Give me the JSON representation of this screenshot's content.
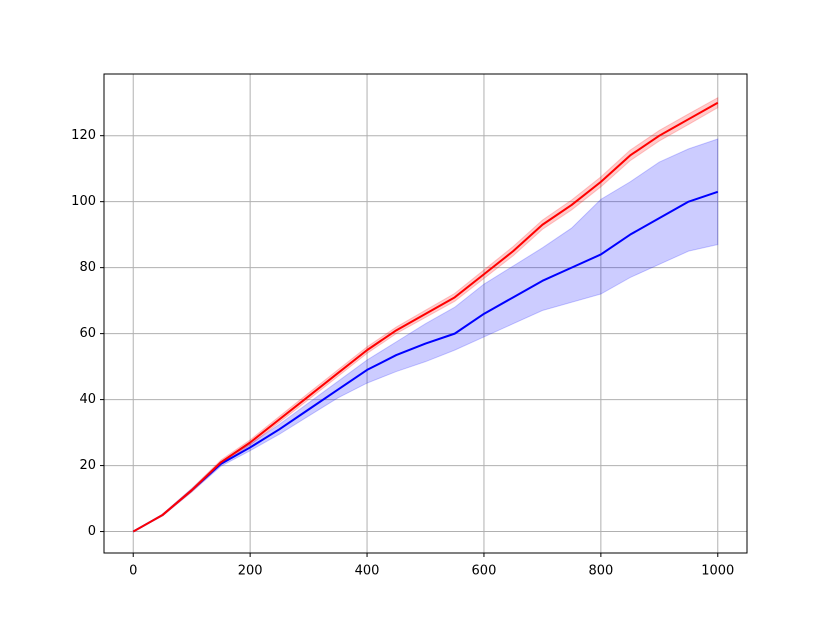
{
  "chart_data": {
    "type": "line_band",
    "x": [
      0,
      50,
      100,
      150,
      200,
      250,
      300,
      350,
      400,
      450,
      500,
      550,
      600,
      650,
      700,
      750,
      800,
      850,
      900,
      950,
      1000
    ],
    "series": [
      {
        "color": "#0000ff",
        "values": [
          0,
          5,
          12.5,
          20.5,
          25.5,
          31,
          37,
          43,
          49,
          53.5,
          57,
          60,
          66,
          71,
          76,
          80,
          84,
          90,
          95,
          100,
          103
        ],
        "lower": [
          0,
          4.8,
          12,
          19.8,
          24.5,
          29.5,
          35,
          40.5,
          45,
          48.5,
          51.5,
          55,
          59,
          63,
          67,
          69.5,
          72,
          77,
          81,
          85,
          87
        ],
        "upper": [
          0,
          5.2,
          13,
          21.2,
          26.5,
          32.5,
          39,
          45.5,
          52,
          57.5,
          63,
          68,
          75,
          80.5,
          86,
          92,
          100.7,
          106,
          112,
          116,
          119
        ]
      },
      {
        "color": "#ff0000",
        "values": [
          0,
          5,
          12.5,
          21,
          27,
          34,
          41,
          48,
          55,
          61,
          66,
          71,
          78,
          85,
          93,
          99,
          106,
          114,
          120,
          125,
          130
        ],
        "lower": [
          0,
          4.7,
          12,
          20.3,
          26.2,
          33.1,
          40,
          47,
          54,
          60,
          64.9,
          69.8,
          76.7,
          83.6,
          91.6,
          97.5,
          104.5,
          112.4,
          118.4,
          123.4,
          128.5
        ],
        "upper": [
          0,
          5.3,
          13,
          21.7,
          27.8,
          34.9,
          42,
          49,
          56,
          62,
          67.1,
          72.2,
          79.3,
          86.4,
          94.4,
          100.5,
          107.5,
          115.6,
          121.6,
          126.6,
          131.5
        ]
      }
    ],
    "band_opacity": 0.2,
    "xlim": [
      -50,
      1050
    ],
    "xticks": [
      0,
      200,
      400,
      600,
      800,
      1000
    ],
    "ylim": [
      -6.5,
      138.7
    ],
    "yticks": [
      0,
      20,
      40,
      60,
      80,
      100,
      120
    ],
    "grid": true
  }
}
